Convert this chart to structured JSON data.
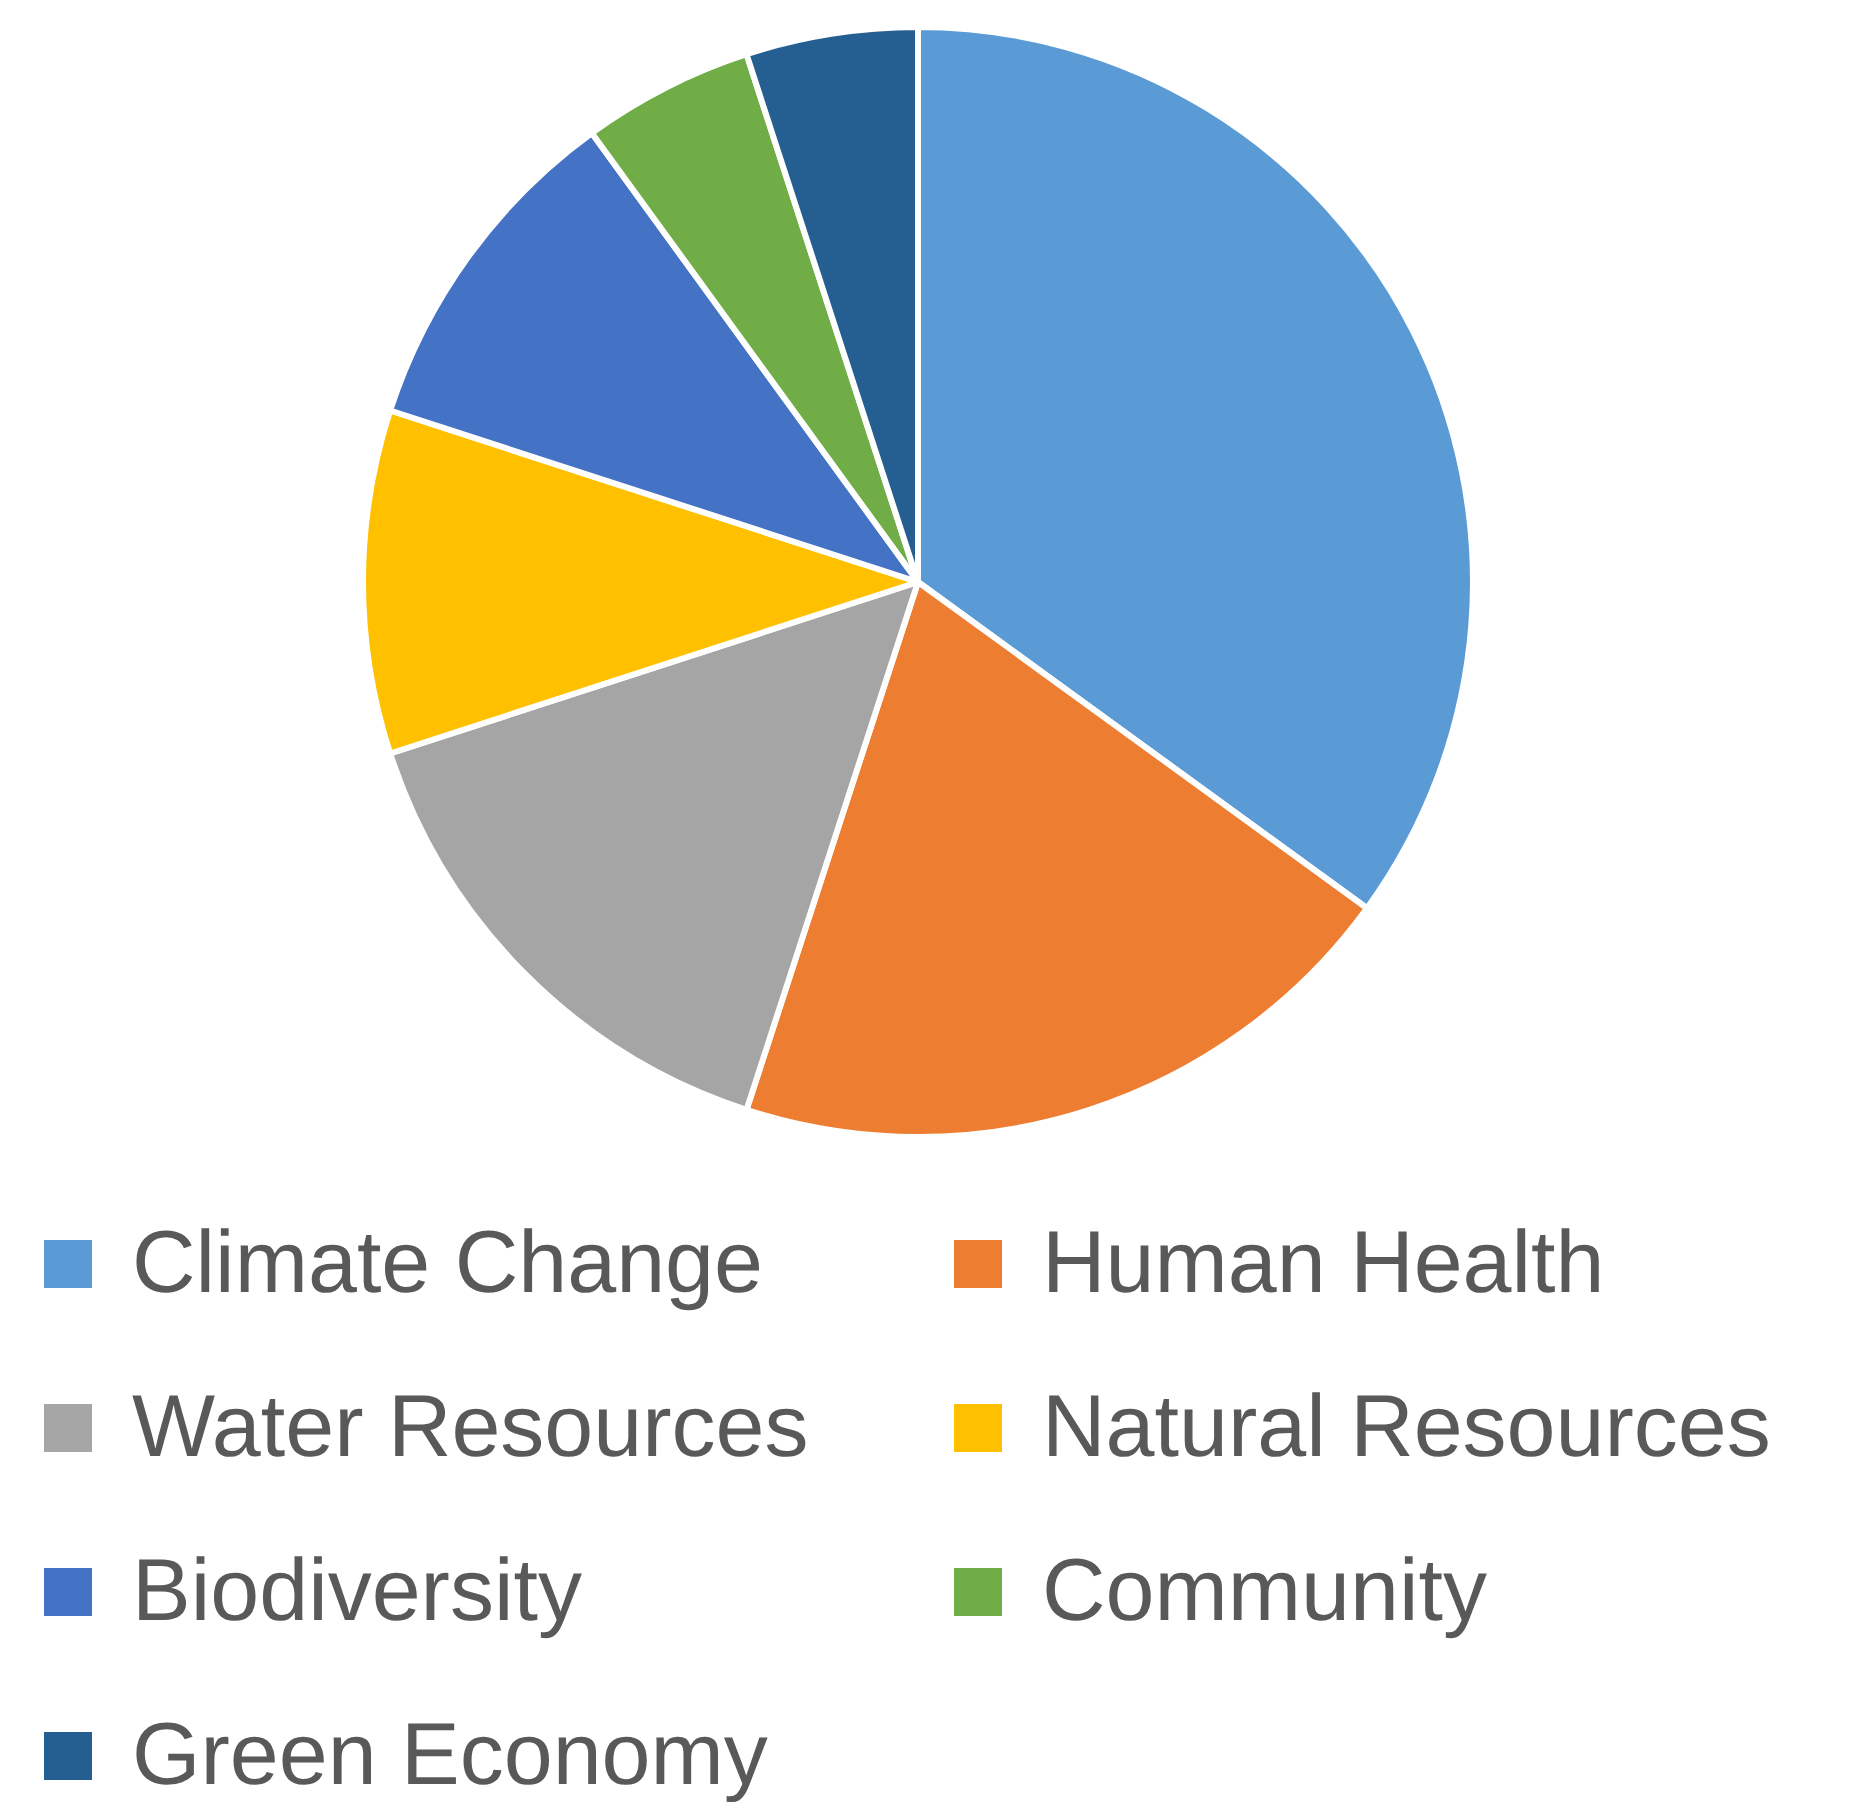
{
  "chart_data": {
    "type": "pie",
    "categories": [
      "Climate Change",
      "Human Health",
      "Water Resources",
      "Natural Resources",
      "Biodiversity",
      "Community",
      "Green Economy"
    ],
    "values": [
      35,
      20,
      15,
      10,
      10,
      5,
      5
    ],
    "colors": [
      "#5b9bd5",
      "#ed7d31",
      "#a5a5a5",
      "#ffc000",
      "#4472c4",
      "#70ad47",
      "#255e91"
    ],
    "legend": "bottom"
  }
}
